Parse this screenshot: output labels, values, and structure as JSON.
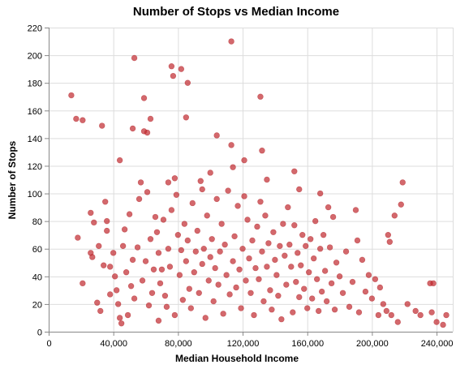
{
  "chart_data": {
    "type": "scatter",
    "title": "Number of Stops vs Median Income",
    "xlabel": "Median Household Income",
    "ylabel": "Number of Stops",
    "xlim": [
      0,
      250000
    ],
    "ylim": [
      0,
      220
    ],
    "x_ticks": [
      0,
      40000,
      80000,
      120000,
      160000,
      200000,
      240000
    ],
    "x_tick_labels": [
      "0",
      "40,000",
      "80,000",
      "120,000",
      "160,000",
      "200,000",
      "240,000"
    ],
    "y_ticks": [
      0,
      20,
      40,
      60,
      80,
      100,
      120,
      140,
      160,
      180,
      200,
      220
    ],
    "y_tick_labels": [
      "0",
      "20",
      "40",
      "60",
      "80",
      "100",
      "120",
      "140",
      "160",
      "180",
      "200",
      "220"
    ],
    "grid": true,
    "colors": {
      "point": "#c0282d"
    },
    "points": [
      [
        14000,
        171
      ],
      [
        17000,
        154
      ],
      [
        18000,
        68
      ],
      [
        21000,
        153
      ],
      [
        21000,
        35
      ],
      [
        26000,
        86
      ],
      [
        26000,
        57
      ],
      [
        27000,
        54
      ],
      [
        28000,
        79
      ],
      [
        30000,
        21
      ],
      [
        31000,
        62
      ],
      [
        32000,
        15
      ],
      [
        33000,
        149
      ],
      [
        34000,
        48
      ],
      [
        35000,
        94
      ],
      [
        36000,
        80
      ],
      [
        36000,
        73
      ],
      [
        38000,
        27
      ],
      [
        38000,
        47
      ],
      [
        40000,
        57
      ],
      [
        41000,
        40
      ],
      [
        42000,
        30
      ],
      [
        43000,
        20
      ],
      [
        44000,
        124
      ],
      [
        44000,
        10
      ],
      [
        45000,
        6
      ],
      [
        46000,
        62
      ],
      [
        47000,
        74
      ],
      [
        48000,
        43
      ],
      [
        49000,
        12
      ],
      [
        50000,
        85
      ],
      [
        51000,
        33
      ],
      [
        52000,
        147
      ],
      [
        52000,
        52
      ],
      [
        53000,
        198
      ],
      [
        53000,
        24
      ],
      [
        55000,
        61
      ],
      [
        56000,
        96
      ],
      [
        57000,
        108
      ],
      [
        58000,
        37
      ],
      [
        59000,
        169
      ],
      [
        59000,
        145
      ],
      [
        60000,
        51
      ],
      [
        61000,
        144
      ],
      [
        61000,
        101
      ],
      [
        62000,
        19
      ],
      [
        63000,
        154
      ],
      [
        63000,
        67
      ],
      [
        64000,
        28
      ],
      [
        65000,
        45
      ],
      [
        66000,
        83
      ],
      [
        67000,
        72
      ],
      [
        68000,
        57
      ],
      [
        68000,
        8
      ],
      [
        69000,
        35
      ],
      [
        70000,
        45
      ],
      [
        71000,
        81
      ],
      [
        72000,
        26
      ],
      [
        73000,
        18
      ],
      [
        74000,
        108
      ],
      [
        74000,
        60
      ],
      [
        75000,
        47
      ],
      [
        76000,
        88
      ],
      [
        76000,
        192
      ],
      [
        77000,
        185
      ],
      [
        78000,
        111
      ],
      [
        78000,
        12
      ],
      [
        79000,
        99
      ],
      [
        80000,
        70
      ],
      [
        81000,
        41
      ],
      [
        82000,
        59
      ],
      [
        82000,
        190
      ],
      [
        83000,
        23
      ],
      [
        84000,
        78
      ],
      [
        85000,
        155
      ],
      [
        85000,
        51
      ],
      [
        86000,
        180
      ],
      [
        86000,
        66
      ],
      [
        87000,
        31
      ],
      [
        88000,
        17
      ],
      [
        89000,
        93
      ],
      [
        90000,
        43
      ],
      [
        91000,
        58
      ],
      [
        92000,
        73
      ],
      [
        93000,
        28
      ],
      [
        94000,
        109
      ],
      [
        95000,
        49
      ],
      [
        95000,
        103
      ],
      [
        96000,
        60
      ],
      [
        97000,
        10
      ],
      [
        98000,
        84
      ],
      [
        99000,
        37
      ],
      [
        100000,
        115
      ],
      [
        100000,
        54
      ],
      [
        101000,
        67
      ],
      [
        102000,
        22
      ],
      [
        103000,
        46
      ],
      [
        104000,
        142
      ],
      [
        104000,
        96
      ],
      [
        105000,
        34
      ],
      [
        106000,
        58
      ],
      [
        107000,
        78
      ],
      [
        108000,
        13
      ],
      [
        109000,
        63
      ],
      [
        110000,
        41
      ],
      [
        111000,
        102
      ],
      [
        112000,
        27
      ],
      [
        113000,
        135
      ],
      [
        113000,
        210
      ],
      [
        114000,
        119
      ],
      [
        114000,
        51
      ],
      [
        115000,
        69
      ],
      [
        116000,
        32
      ],
      [
        117000,
        91
      ],
      [
        118000,
        45
      ],
      [
        119000,
        17
      ],
      [
        120000,
        60
      ],
      [
        121000,
        124
      ],
      [
        121000,
        98
      ],
      [
        122000,
        37
      ],
      [
        123000,
        81
      ],
      [
        124000,
        53
      ],
      [
        125000,
        28
      ],
      [
        126000,
        66
      ],
      [
        127000,
        12
      ],
      [
        128000,
        46
      ],
      [
        129000,
        76
      ],
      [
        130000,
        38
      ],
      [
        131000,
        170
      ],
      [
        131000,
        94
      ],
      [
        132000,
        131
      ],
      [
        132000,
        58
      ],
      [
        133000,
        22
      ],
      [
        134000,
        84
      ],
      [
        135000,
        110
      ],
      [
        135000,
        47
      ],
      [
        136000,
        64
      ],
      [
        137000,
        30
      ],
      [
        138000,
        16
      ],
      [
        139000,
        72
      ],
      [
        140000,
        52
      ],
      [
        141000,
        41
      ],
      [
        142000,
        26
      ],
      [
        143000,
        62
      ],
      [
        144000,
        9
      ],
      [
        145000,
        78
      ],
      [
        146000,
        55
      ],
      [
        147000,
        34
      ],
      [
        148000,
        90
      ],
      [
        149000,
        63
      ],
      [
        150000,
        47
      ],
      [
        151000,
        14
      ],
      [
        152000,
        116
      ],
      [
        152000,
        77
      ],
      [
        153000,
        36
      ],
      [
        154000,
        57
      ],
      [
        155000,
        103
      ],
      [
        155000,
        25
      ],
      [
        156000,
        48
      ],
      [
        157000,
        70
      ],
      [
        158000,
        31
      ],
      [
        159000,
        62
      ],
      [
        160000,
        17
      ],
      [
        161000,
        43
      ],
      [
        162000,
        67
      ],
      [
        163000,
        24
      ],
      [
        164000,
        53
      ],
      [
        165000,
        80
      ],
      [
        166000,
        38
      ],
      [
        167000,
        15
      ],
      [
        168000,
        100
      ],
      [
        168000,
        60
      ],
      [
        169000,
        29
      ],
      [
        170000,
        70
      ],
      [
        171000,
        44
      ],
      [
        172000,
        22
      ],
      [
        173000,
        90
      ],
      [
        174000,
        61
      ],
      [
        175000,
        35
      ],
      [
        176000,
        83
      ],
      [
        177000,
        16
      ],
      [
        178000,
        50
      ],
      [
        180000,
        40
      ],
      [
        182000,
        28
      ],
      [
        184000,
        58
      ],
      [
        186000,
        18
      ],
      [
        188000,
        36
      ],
      [
        190000,
        88
      ],
      [
        191000,
        66
      ],
      [
        192000,
        14
      ],
      [
        194000,
        52
      ],
      [
        196000,
        29
      ],
      [
        198000,
        41
      ],
      [
        200000,
        24
      ],
      [
        202000,
        38
      ],
      [
        204000,
        12
      ],
      [
        205000,
        32
      ],
      [
        207000,
        20
      ],
      [
        209000,
        15
      ],
      [
        210000,
        70
      ],
      [
        211000,
        65
      ],
      [
        212000,
        12
      ],
      [
        214000,
        84
      ],
      [
        216000,
        7
      ],
      [
        218000,
        92
      ],
      [
        219000,
        108
      ],
      [
        222000,
        20
      ],
      [
        227000,
        15
      ],
      [
        230000,
        12
      ],
      [
        236000,
        35
      ],
      [
        237000,
        14
      ],
      [
        238000,
        35
      ],
      [
        240000,
        7
      ],
      [
        244000,
        5
      ],
      [
        246000,
        12
      ]
    ]
  }
}
